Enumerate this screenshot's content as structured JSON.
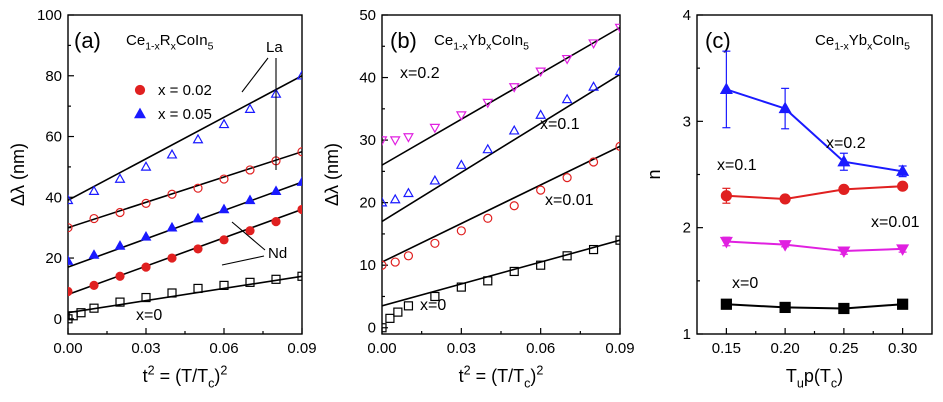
{
  "chart_data": [
    {
      "panel": "(a)",
      "type": "scatter",
      "legend_title": "Ce_{1-x}R_xCoIn_5",
      "legend": [
        "x = 0.02",
        "x = 0.05"
      ],
      "xlabel": "t^2 = (T/T_c)^2",
      "ylabel": "Δλ (nm)",
      "xlim": [
        0,
        0.09
      ],
      "ylim": [
        -5,
        100
      ],
      "xticks": [
        "0.00",
        "0.03",
        "0.06",
        "0.09"
      ],
      "yticks": [
        "0",
        "20",
        "40",
        "60",
        "80",
        "100"
      ],
      "annotations": [
        "La",
        "Nd",
        "x=0"
      ],
      "series": [
        {
          "name": "x = 0.05",
          "label": "La",
          "marker": "triangle-open",
          "color": "#1a1aff",
          "x": [
            0.0,
            0.01,
            0.02,
            0.03,
            0.04,
            0.05,
            0.06,
            0.07,
            0.08,
            0.09
          ],
          "y": [
            39,
            42,
            46,
            50,
            54,
            59,
            64,
            69,
            74,
            80
          ],
          "fit": {
            "x": [
              0,
              0.09
            ],
            "y": [
              39,
              80
            ]
          }
        },
        {
          "name": "x = 0.02",
          "label": "La",
          "marker": "circle-open",
          "color": "#e02020",
          "x": [
            0.0,
            0.01,
            0.02,
            0.03,
            0.04,
            0.05,
            0.06,
            0.07,
            0.08,
            0.09
          ],
          "y": [
            30,
            33,
            35,
            38,
            41,
            43,
            46,
            49,
            52,
            55
          ],
          "fit": {
            "x": [
              0,
              0.09
            ],
            "y": [
              30,
              55
            ]
          }
        },
        {
          "name": "x = 0.05",
          "label": "Nd",
          "marker": "triangle",
          "color": "#1a1aff",
          "x": [
            0.0,
            0.01,
            0.02,
            0.03,
            0.04,
            0.05,
            0.06,
            0.07,
            0.08,
            0.09
          ],
          "y": [
            19,
            21,
            24,
            27,
            30,
            33,
            36,
            39,
            42,
            45
          ],
          "fit": {
            "x": [
              0,
              0.09
            ],
            "y": [
              17,
              45
            ]
          }
        },
        {
          "name": "x = 0.02",
          "label": "Nd",
          "marker": "circle",
          "color": "#e02020",
          "x": [
            0.0,
            0.01,
            0.02,
            0.03,
            0.04,
            0.05,
            0.06,
            0.07,
            0.08,
            0.09
          ],
          "y": [
            9,
            11,
            14,
            17,
            20,
            23,
            26,
            29,
            32,
            36
          ],
          "fit": {
            "x": [
              0,
              0.09
            ],
            "y": [
              8,
              36
            ]
          }
        },
        {
          "name": "x=0",
          "label": "x=0",
          "marker": "square-open",
          "color": "#000000",
          "x": [
            0.0,
            0.002,
            0.005,
            0.01,
            0.02,
            0.03,
            0.04,
            0.05,
            0.06,
            0.07,
            0.08,
            0.09
          ],
          "y": [
            0,
            1,
            2,
            3.5,
            5.5,
            7,
            8.5,
            10,
            11,
            12,
            13,
            14
          ],
          "fit": {
            "x": [
              0,
              0.09
            ],
            "y": [
              2,
              14
            ]
          }
        }
      ]
    },
    {
      "panel": "(b)",
      "type": "scatter",
      "legend_title": "Ce_{1-x}Yb_xCoIn_5",
      "xlabel": "t^2 = (T/T_c)^2",
      "ylabel": "Δλ (nm)",
      "xlim": [
        0,
        0.09
      ],
      "ylim": [
        -1,
        50
      ],
      "xticks": [
        "0.00",
        "0.03",
        "0.06",
        "0.09"
      ],
      "yticks": [
        "0",
        "10",
        "20",
        "30",
        "40",
        "50"
      ],
      "series": [
        {
          "name": "x=0.2",
          "marker": "triangle-down-open",
          "color": "#e020e0",
          "x": [
            0.0,
            0.005,
            0.01,
            0.02,
            0.03,
            0.04,
            0.05,
            0.06,
            0.07,
            0.08,
            0.09
          ],
          "y": [
            30,
            30,
            30.5,
            32,
            34,
            36,
            38.5,
            41,
            43,
            45.5,
            48
          ],
          "fit": {
            "x": [
              0,
              0.09
            ],
            "y": [
              26,
              48
            ]
          }
        },
        {
          "name": "x=0.1",
          "marker": "triangle-open",
          "color": "#1a1aff",
          "x": [
            0.0,
            0.005,
            0.01,
            0.02,
            0.03,
            0.04,
            0.05,
            0.06,
            0.07,
            0.08,
            0.09
          ],
          "y": [
            20,
            20.5,
            21.5,
            23.5,
            26,
            28.5,
            31.5,
            34,
            36.5,
            38.5,
            41
          ],
          "fit": {
            "x": [
              0,
              0.09
            ],
            "y": [
              17,
              40.5
            ]
          }
        },
        {
          "name": "x=0.01",
          "marker": "circle-open",
          "color": "#e02020",
          "x": [
            0.0,
            0.005,
            0.01,
            0.02,
            0.03,
            0.04,
            0.05,
            0.06,
            0.07,
            0.08,
            0.09
          ],
          "y": [
            10,
            10.5,
            11.5,
            13.5,
            15.5,
            17.5,
            19.5,
            22,
            24,
            26.5,
            29
          ],
          "fit": {
            "x": [
              0,
              0.09
            ],
            "y": [
              10.5,
              29
            ]
          }
        },
        {
          "name": "x=0",
          "marker": "square-open",
          "color": "#000000",
          "x": [
            0.0,
            0.003,
            0.006,
            0.01,
            0.02,
            0.03,
            0.04,
            0.05,
            0.06,
            0.07,
            0.08,
            0.09
          ],
          "y": [
            0,
            1.5,
            2.5,
            3.5,
            5,
            6.5,
            7.5,
            9,
            10,
            11.5,
            12.5,
            14
          ],
          "fit": {
            "x": [
              0,
              0.09
            ],
            "y": [
              3.5,
              14
            ]
          }
        }
      ]
    },
    {
      "panel": "(c)",
      "type": "line",
      "legend_title": "Ce_{1-x}Yb_xCoIn_5",
      "xlabel": "T_up(T_c)",
      "ylabel": "n",
      "xlim": [
        0.125,
        0.325
      ],
      "ylim": [
        1,
        4
      ],
      "xticks": [
        "0.15",
        "0.20",
        "0.25",
        "0.30"
      ],
      "yticks": [
        "1",
        "2",
        "3",
        "4"
      ],
      "categories": [
        0.15,
        0.2,
        0.25,
        0.3
      ],
      "series": [
        {
          "name": "x=0.2",
          "marker": "triangle",
          "color": "#1a1aff",
          "values": [
            3.3,
            3.12,
            2.62,
            2.53
          ],
          "errors": [
            0.36,
            0.19,
            0.08,
            0.05
          ]
        },
        {
          "name": "x=0.1",
          "marker": "circle",
          "color": "#e02020",
          "values": [
            2.3,
            2.27,
            2.36,
            2.39
          ],
          "errors": [
            0.07,
            0.02,
            0.02,
            0.02
          ]
        },
        {
          "name": "x=0.01",
          "marker": "triangle-down",
          "color": "#e020e0",
          "values": [
            1.87,
            1.84,
            1.78,
            1.8
          ],
          "errors": [
            0.04,
            0.02,
            0.03,
            0.03
          ]
        },
        {
          "name": "x=0",
          "marker": "square",
          "color": "#000000",
          "values": [
            1.28,
            1.25,
            1.24,
            1.28
          ],
          "errors": [
            0.02,
            0.01,
            0.02,
            0.02
          ]
        }
      ]
    }
  ]
}
